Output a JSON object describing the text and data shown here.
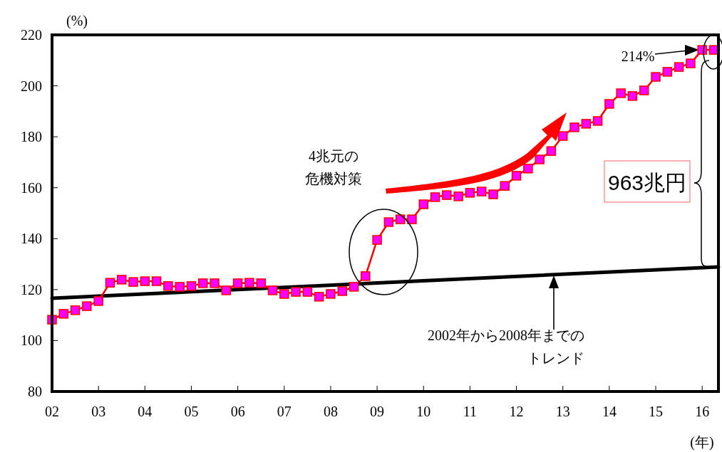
{
  "chart_data": {
    "type": "line",
    "ylabel": "(%)",
    "xlabel": "(年)",
    "xlim": [
      2002,
      2016.35
    ],
    "ylim": [
      80,
      220
    ],
    "xticks": [
      {
        "value": 2002,
        "label": "02"
      },
      {
        "value": 2003,
        "label": "03"
      },
      {
        "value": 2004,
        "label": "04"
      },
      {
        "value": 2005,
        "label": "05"
      },
      {
        "value": 2006,
        "label": "06"
      },
      {
        "value": 2007,
        "label": "07"
      },
      {
        "value": 2008,
        "label": "08"
      },
      {
        "value": 2009,
        "label": "09"
      },
      {
        "value": 2010,
        "label": "10"
      },
      {
        "value": 2011,
        "label": "11"
      },
      {
        "value": 2012,
        "label": "12"
      },
      {
        "value": 2013,
        "label": "13"
      },
      {
        "value": 2014,
        "label": "14"
      },
      {
        "value": 2015,
        "label": "15"
      },
      {
        "value": 2016,
        "label": "16"
      }
    ],
    "yticks": [
      80,
      100,
      120,
      140,
      160,
      180,
      200,
      220
    ],
    "series": [
      {
        "color": "#ff0000",
        "marker": "square",
        "x": [
          2002,
          2002.25,
          2002.5,
          2002.75,
          2003,
          2003.25,
          2003.5,
          2003.75,
          2004,
          2004.25,
          2004.5,
          2004.75,
          2005,
          2005.25,
          2005.5,
          2005.75,
          2006,
          2006.25,
          2006.5,
          2006.75,
          2007,
          2007.25,
          2007.5,
          2007.75,
          2008,
          2008.25,
          2008.5,
          2008.75,
          2009,
          2009.25,
          2009.5,
          2009.75,
          2010,
          2010.25,
          2010.5,
          2010.75,
          2011,
          2011.25,
          2011.5,
          2011.75,
          2012,
          2012.25,
          2012.5,
          2012.75,
          2013,
          2013.25,
          2013.5,
          2013.75,
          2014,
          2014.25,
          2014.5,
          2014.75,
          2015,
          2015.25,
          2015.5,
          2015.75,
          2016,
          2016.25
        ],
        "values": [
          108.2,
          110.5,
          111.9,
          113.5,
          115.5,
          122.7,
          123.9,
          123.0,
          123.3,
          123.3,
          121.4,
          121.1,
          121.4,
          122.5,
          122.5,
          119.7,
          122.5,
          122.7,
          122.5,
          119.7,
          118.3,
          119.1,
          119.1,
          117.2,
          118.3,
          119.4,
          121.1,
          125.3,
          139.5,
          146.5,
          147.6,
          147.6,
          153.5,
          156.3,
          157.1,
          156.6,
          158.0,
          158.5,
          157.4,
          160.7,
          164.7,
          167.5,
          171.1,
          174.4,
          180.3,
          183.7,
          185.1,
          186.2,
          192.9,
          197.1,
          196.0,
          198.2,
          203.5,
          205.5,
          207.4,
          208.8,
          214.1,
          214.1
        ]
      },
      {
        "color": "#000000",
        "marker": "none",
        "x": [
          2002,
          2016.35
        ],
        "values": [
          116.6,
          128.9
        ]
      }
    ],
    "annotations": [
      "4兆元の",
      "危機対策",
      "963兆円",
      "214%",
      "2002年から2008年までの",
      "トレンド"
    ]
  }
}
